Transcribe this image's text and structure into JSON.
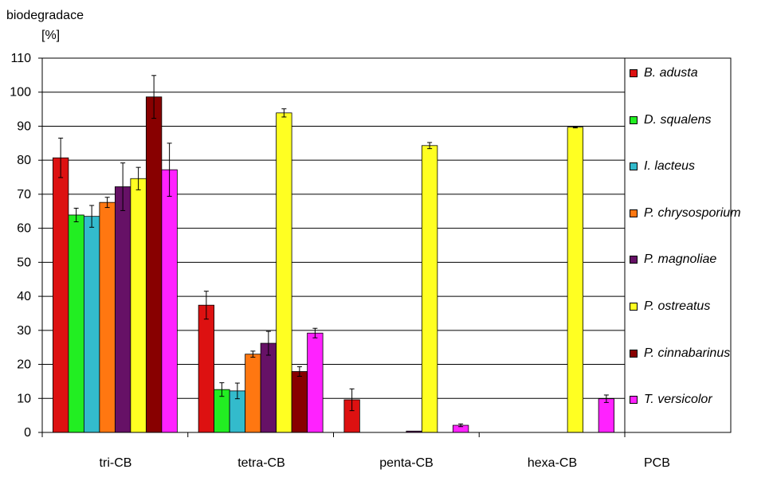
{
  "chart_data": {
    "type": "bar",
    "ylabel_line1": "biodegradace",
    "ylabel_line2": "[%]",
    "xlabel": "PCB",
    "ylim": [
      0,
      110
    ],
    "yticks": [
      0,
      10,
      20,
      30,
      40,
      50,
      60,
      70,
      80,
      90,
      100,
      110
    ],
    "grid": true,
    "legend_position": "right",
    "categories": [
      "tri-CB",
      "tetra-CB",
      "penta-CB",
      "hexa-CB"
    ],
    "series": [
      {
        "name": "B. adusta",
        "color": "#dd1111",
        "values": [
          80.7,
          37.4,
          9.6,
          0
        ],
        "errors": [
          5.8,
          4.1,
          3.2,
          0
        ]
      },
      {
        "name": "D. squalens",
        "color": "#22ee22",
        "values": [
          63.9,
          12.6,
          0,
          0
        ],
        "errors": [
          2.0,
          2.0,
          0,
          0
        ]
      },
      {
        "name": "I. lacteus",
        "color": "#33bbcc",
        "values": [
          63.5,
          12.2,
          0,
          0
        ],
        "errors": [
          3.2,
          2.3,
          0,
          0
        ]
      },
      {
        "name": "P. chrysosporium",
        "color": "#ff7711",
        "values": [
          67.6,
          23.0,
          0,
          0
        ],
        "errors": [
          1.5,
          0.9,
          0,
          0
        ]
      },
      {
        "name": "P. magnoliae",
        "color": "#661166",
        "values": [
          72.2,
          26.2,
          0.4,
          0
        ],
        "errors": [
          7.0,
          3.5,
          0,
          0
        ]
      },
      {
        "name": "P. ostreatus",
        "color": "#ffff22",
        "values": [
          74.6,
          93.9,
          84.3,
          89.7
        ],
        "errors": [
          3.3,
          1.2,
          0.9,
          0.2
        ]
      },
      {
        "name": "P. cinnabarinus",
        "color": "#880000",
        "values": [
          98.6,
          17.9,
          0,
          0
        ],
        "errors": [
          6.3,
          1.4,
          0,
          0
        ]
      },
      {
        "name": "T. versicolor",
        "color": "#ff22ff",
        "values": [
          77.2,
          29.2,
          2.1,
          9.9
        ],
        "errors": [
          7.8,
          1.4,
          0.4,
          1.1
        ]
      }
    ]
  }
}
